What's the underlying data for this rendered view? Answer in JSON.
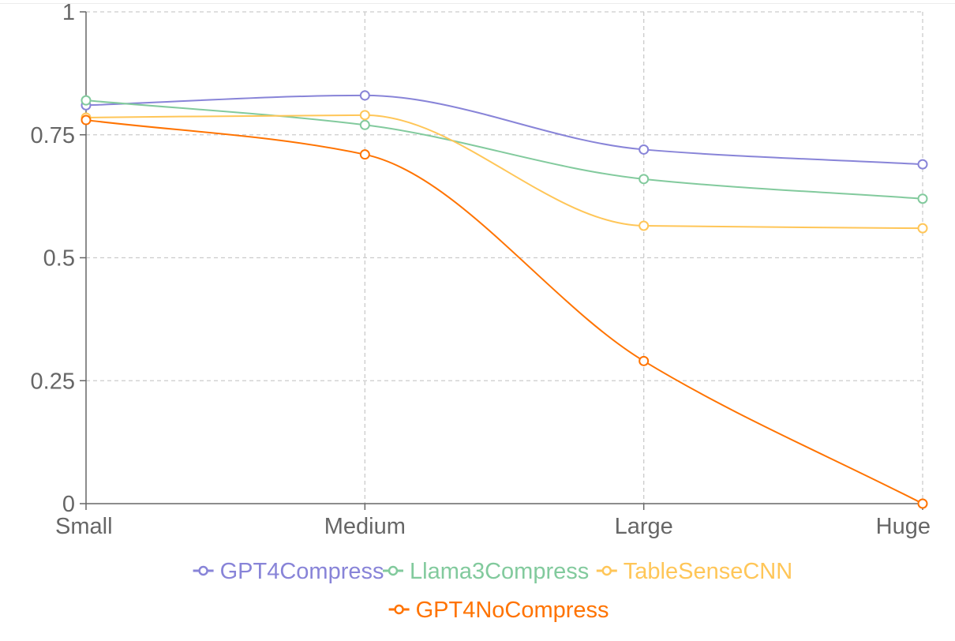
{
  "chart_data": {
    "type": "line",
    "title": "",
    "xlabel": "",
    "ylabel": "",
    "categories": [
      "Small",
      "Medium",
      "Large",
      "Huge"
    ],
    "ylim": [
      0,
      1
    ],
    "yticks": [
      0,
      0.25,
      0.5,
      0.75,
      1
    ],
    "ytick_labels": [
      "0",
      "0.25",
      "0.5",
      "0.75",
      "1"
    ],
    "grid": true,
    "legend_position": "bottom",
    "series": [
      {
        "name": "GPT4Compress",
        "color": "#8884d8",
        "values": [
          0.81,
          0.83,
          0.72,
          0.69
        ]
      },
      {
        "name": "Llama3Compress",
        "color": "#82ca9d",
        "values": [
          0.82,
          0.77,
          0.66,
          0.62
        ]
      },
      {
        "name": "TableSenseCNN",
        "color": "#ffc658",
        "values": [
          0.785,
          0.79,
          0.565,
          0.56
        ]
      },
      {
        "name": "GPT4NoCompress",
        "color": "#ff7300",
        "values": [
          0.78,
          0.71,
          0.29,
          0.0
        ]
      }
    ]
  }
}
